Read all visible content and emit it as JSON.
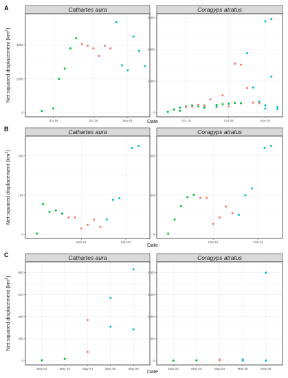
{
  "colors": {
    "travel": "#00ba38",
    "stationary": "#f8766d",
    "return": "#00bfc4"
  },
  "ylabel_main": "Net-squared displacement (km",
  "ylabel_sup": "2",
  "ylabel_close": ")",
  "chart_data": [
    {
      "type": "scatter",
      "letter": "A",
      "xlabel": "Date",
      "panels": [
        {
          "title": "Cathartes aura",
          "xlim": [
            "2017-10-15",
            "2017-11-04"
          ],
          "x_ticks": [
            {
              "date": "2017-10-19",
              "label": "Oct 19"
            },
            {
              "date": "2017-10-26",
              "label": "Oct 26"
            },
            {
              "date": "2017-11-01",
              "label": "Nov 01"
            }
          ],
          "ylim": [
            0,
            5600
          ],
          "y_ticks": [
            0,
            2000,
            4000
          ],
          "series": [
            {
              "color_key": "travel",
              "points": [
                [
                  "2017-10-17",
                  100
                ],
                [
                  "2017-10-19",
                  250
                ],
                [
                  "2017-10-20",
                  2000
                ],
                [
                  "2017-10-21",
                  2600
                ],
                [
                  "2017-10-22",
                  3800
                ],
                [
                  "2017-10-23",
                  4400
                ]
              ]
            },
            {
              "color_key": "stationary",
              "points": [
                [
                  "2017-10-24",
                  4050
                ],
                [
                  "2017-10-25",
                  3950
                ],
                [
                  "2017-10-26",
                  3800
                ],
                [
                  "2017-10-27",
                  3350
                ],
                [
                  "2017-10-28",
                  3950
                ],
                [
                  "2017-10-29",
                  3800
                ]
              ]
            },
            {
              "color_key": "return",
              "points": [
                [
                  "2017-10-30",
                  5350
                ],
                [
                  "2017-10-31",
                  2800
                ],
                [
                  "2017-11-01",
                  2500
                ],
                [
                  "2017-11-02",
                  4500
                ],
                [
                  "2017-11-03",
                  3650
                ],
                [
                  "2017-11-04",
                  2750
                ]
              ]
            }
          ]
        },
        {
          "title": "Coragyps atratus",
          "xlim": [
            "2017-10-15",
            "2017-11-03"
          ],
          "x_ticks": [
            {
              "date": "2017-10-19",
              "label": "Oct 19"
            },
            {
              "date": "2017-10-26",
              "label": "Oct 26"
            },
            {
              "date": "2017-11-01",
              "label": "Nov 01"
            }
          ],
          "ylim": [
            0,
            3000
          ],
          "y_ticks": [
            0,
            1000,
            2000,
            3000
          ],
          "series": [
            {
              "color_key": "travel",
              "points": [
                [
                  "2017-10-16",
                  30
                ],
                [
                  "2017-10-17",
                  100
                ],
                [
                  "2017-10-18",
                  60
                ],
                [
                  "2017-10-18",
                  160
                ],
                [
                  "2017-10-19",
                  200
                ],
                [
                  "2017-10-20",
                  230
                ],
                [
                  "2017-10-21",
                  200
                ],
                [
                  "2017-10-22",
                  160
                ],
                [
                  "2017-10-22",
                  230
                ],
                [
                  "2017-10-24",
                  250
                ],
                [
                  "2017-10-25",
                  270
                ],
                [
                  "2017-10-26",
                  280
                ],
                [
                  "2017-10-27",
                  310
                ],
                [
                  "2017-10-28",
                  300
                ]
              ]
            },
            {
              "color_key": "stationary",
              "points": [
                [
                  "2017-10-19",
                  180
                ],
                [
                  "2017-10-20",
                  190
                ],
                [
                  "2017-10-21",
                  250
                ],
                [
                  "2017-10-22",
                  220
                ],
                [
                  "2017-10-23",
                  420
                ],
                [
                  "2017-10-24",
                  180
                ],
                [
                  "2017-10-25",
                  550
                ],
                [
                  "2017-10-26",
                  200
                ],
                [
                  "2017-10-27",
                  1550
                ],
                [
                  "2017-10-28",
                  1520
                ],
                [
                  "2017-10-29",
                  780
                ],
                [
                  "2017-10-30",
                  320
                ],
                [
                  "2017-10-31",
                  300
                ]
              ]
            },
            {
              "color_key": "return",
              "points": [
                [
                  "2017-10-24",
                  200
                ],
                [
                  "2017-10-29",
                  1880
                ],
                [
                  "2017-10-30",
                  800
                ],
                [
                  "2017-10-31",
                  350
                ],
                [
                  "2017-11-01",
                  2890
                ],
                [
                  "2017-11-02",
                  2960
                ],
                [
                  "2017-11-02",
                  1140
                ],
                [
                  "2017-11-01",
                  230
                ],
                [
                  "2017-11-01",
                  130
                ],
                [
                  "2017-11-03",
                  180
                ],
                [
                  "2017-11-03",
                  120
                ]
              ]
            }
          ]
        }
      ]
    },
    {
      "type": "scatter",
      "letter": "B",
      "xlabel": "Date",
      "panels": [
        {
          "title": "Cathartes aura",
          "xlim": [
            "2018-02-07",
            "2018-02-25"
          ],
          "x_ticks": [
            {
              "date": "2018-02-15",
              "label": "Feb 15"
            },
            {
              "date": "2018-02-22",
              "label": "Feb 22"
            }
          ],
          "ylim": [
            0,
            240
          ],
          "y_ticks": [
            0,
            100,
            200
          ],
          "series": [
            {
              "color_key": "travel",
              "points": [
                [
                  "2018-02-08",
                  2
                ],
                [
                  "2018-02-09",
                  77
                ],
                [
                  "2018-02-10",
                  57
                ],
                [
                  "2018-02-11",
                  61
                ],
                [
                  "2018-02-12",
                  53
                ]
              ]
            },
            {
              "color_key": "stationary",
              "points": [
                [
                  "2018-02-13",
                  43
                ],
                [
                  "2018-02-14",
                  43
                ],
                [
                  "2018-02-15",
                  15
                ],
                [
                  "2018-02-16",
                  24
                ],
                [
                  "2018-02-17",
                  38
                ],
                [
                  "2018-02-18",
                  19
                ]
              ]
            },
            {
              "color_key": "return",
              "points": [
                [
                  "2018-02-19",
                  38
                ],
                [
                  "2018-02-20",
                  88
                ],
                [
                  "2018-02-21",
                  92
                ],
                [
                  "2018-02-23",
                  220
                ],
                [
                  "2018-02-24",
                  225
                ]
              ]
            }
          ]
        },
        {
          "title": "Coragyps atratus",
          "xlim": [
            "2018-02-07",
            "2018-02-25"
          ],
          "x_ticks": [
            {
              "date": "2018-02-15",
              "label": "Feb 15"
            },
            {
              "date": "2018-02-22",
              "label": "Feb 22"
            }
          ],
          "ylim": [
            0,
            240
          ],
          "y_ticks": [
            0,
            100,
            200
          ],
          "series": [
            {
              "color_key": "travel",
              "points": [
                [
                  "2018-02-08",
                  2
                ],
                [
                  "2018-02-09",
                  38
                ],
                [
                  "2018-02-10",
                  72
                ],
                [
                  "2018-02-11",
                  95
                ],
                [
                  "2018-02-12",
                  101
                ]
              ]
            },
            {
              "color_key": "stationary",
              "points": [
                [
                  "2018-02-13",
                  93
                ],
                [
                  "2018-02-14",
                  93
                ],
                [
                  "2018-02-15",
                  27
                ],
                [
                  "2018-02-16",
                  43
                ],
                [
                  "2018-02-17",
                  71
                ],
                [
                  "2018-02-18",
                  54
                ]
              ]
            },
            {
              "color_key": "return",
              "points": [
                [
                  "2018-02-19",
                  50
                ],
                [
                  "2018-02-20",
                  100
                ],
                [
                  "2018-02-21",
                  117
                ],
                [
                  "2018-02-23",
                  220
                ],
                [
                  "2018-02-24",
                  225
                ]
              ]
            }
          ]
        }
      ]
    },
    {
      "type": "scatter",
      "letter": "C",
      "xlabel": "Date",
      "panels": [
        {
          "title": "Cathartes aura",
          "xlim": [
            "2018-05-01 12:00",
            "2018-05-06 12:00"
          ],
          "x_ticks": [
            {
              "date": "2018-05-02",
              "label": "May 02"
            },
            {
              "date": "2018-05-03",
              "label": "May 03"
            },
            {
              "date": "2018-05-04",
              "label": "May 04"
            },
            {
              "date": "2018-05-05",
              "label": "May 05"
            },
            {
              "date": "2018-05-06",
              "label": "May 06"
            }
          ],
          "ylim": [
            0,
            860
          ],
          "y_ticks": [
            0,
            200,
            400,
            600,
            800
          ],
          "series": [
            {
              "color_key": "travel",
              "points": [
                [
                  "2018-05-02 00:00",
                  5
                ],
                [
                  "2018-05-03 00:00",
                  18
                ]
              ]
            },
            {
              "color_key": "stationary",
              "points": [
                [
                  "2018-05-04 00:00",
                  370
                ],
                [
                  "2018-05-04 00:00",
                  80
                ]
              ]
            },
            {
              "color_key": "return",
              "points": [
                [
                  "2018-05-05 00:00",
                  570
                ],
                [
                  "2018-05-05 00:00",
                  310
                ],
                [
                  "2018-05-06 00:00",
                  830
                ],
                [
                  "2018-05-06 00:00",
                  285
                ]
              ]
            }
          ]
        },
        {
          "title": "Coragyps atratus",
          "xlim": [
            "2018-05-01 12:00",
            "2018-05-06 12:00"
          ],
          "x_ticks": [
            {
              "date": "2018-05-02",
              "label": "May 02"
            },
            {
              "date": "2018-05-03",
              "label": "May 03"
            },
            {
              "date": "2018-05-04",
              "label": "May 04"
            },
            {
              "date": "2018-05-05",
              "label": "May 05"
            },
            {
              "date": "2018-05-06",
              "label": "May 06"
            }
          ],
          "ylim": [
            0,
            2150
          ],
          "y_ticks": [
            0,
            500,
            1000,
            1500,
            2000
          ],
          "series": [
            {
              "color_key": "travel",
              "points": [
                [
                  "2018-05-02 00:00",
                  5
                ],
                [
                  "2018-05-03 00:00",
                  10
                ]
              ]
            },
            {
              "color_key": "stationary",
              "points": [
                [
                  "2018-05-04 00:00",
                  10
                ],
                [
                  "2018-05-04 00:00",
                  30
                ]
              ]
            },
            {
              "color_key": "return",
              "points": [
                [
                  "2018-05-05 00:00",
                  5
                ],
                [
                  "2018-05-05 00:00",
                  30
                ],
                [
                  "2018-05-06 00:00",
                  2000
                ],
                [
                  "2018-05-06 00:00",
                  5
                ]
              ]
            }
          ]
        }
      ]
    }
  ]
}
